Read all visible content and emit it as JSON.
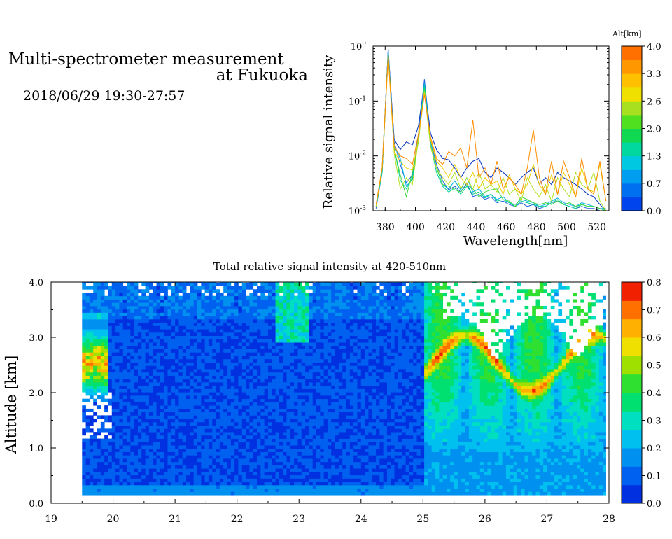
{
  "header": {
    "title_line1": "Multi-spectrometer measurement",
    "title_line2": "at Fukuoka",
    "datetime": "2018/06/29 19:30-27:57"
  },
  "chart_data": [
    {
      "type": "line",
      "xlabel": "Wavelength[nm]",
      "ylabel": "Relative signal intensity",
      "yscale": "log",
      "xlim": [
        372,
        528
      ],
      "ylim": [
        0.001,
        1
      ],
      "x_ticks": [
        "380",
        "400",
        "420",
        "440",
        "460",
        "480",
        "500",
        "520"
      ],
      "y_ticks": [
        {
          "base": "10",
          "exp": "0"
        },
        {
          "base": "10",
          "exp": "-1"
        },
        {
          "base": "10",
          "exp": "-2"
        },
        {
          "base": "10",
          "exp": "-3"
        }
      ],
      "x": [
        374,
        378,
        382,
        386,
        390,
        394,
        398,
        402,
        406,
        410,
        414,
        418,
        422,
        426,
        430,
        434,
        438,
        442,
        446,
        450,
        454,
        458,
        462,
        466,
        470,
        474,
        478,
        482,
        486,
        490,
        494,
        498,
        502,
        506,
        510,
        514,
        518,
        522,
        526
      ],
      "colorbar": {
        "label": "Alt[km]",
        "ticks": [
          "4.0",
          "3.3",
          "2.6",
          "2.0",
          "1.3",
          "0.7",
          "0.0"
        ],
        "colors": [
          "#0044ee",
          "#0070f0",
          "#009ef0",
          "#00c8e0",
          "#00d8a0",
          "#10d850",
          "#50e020",
          "#a8e020",
          "#f0e000",
          "#ffc000",
          "#ff9800",
          "#ff7000"
        ]
      },
      "series": [
        {
          "color": "#0030c0",
          "values": [
            0.0012,
            0.006,
            0.85,
            0.02,
            0.013,
            0.018,
            0.016,
            0.035,
            0.21,
            0.026,
            0.013,
            0.009,
            0.0085,
            0.006,
            0.004,
            0.006,
            0.008,
            0.009,
            0.005,
            0.004,
            0.006,
            0.005,
            0.004,
            0.003,
            0.004,
            0.005,
            0.006,
            0.003,
            0.004,
            0.003,
            0.005,
            0.004,
            0.0035,
            0.003,
            0.0025,
            0.002,
            0.0018,
            0.0013,
            0.001
          ]
        },
        {
          "color": "#2060e0",
          "values": [
            0.0011,
            0.005,
            0.9,
            0.018,
            0.007,
            0.0032,
            0.0045,
            0.025,
            0.25,
            0.02,
            0.007,
            0.0035,
            0.0024,
            0.0028,
            0.0022,
            0.0032,
            0.0018,
            0.002,
            0.0016,
            0.0018,
            0.0014,
            0.0015,
            0.0013,
            0.0012,
            0.0014,
            0.0012,
            0.0013,
            0.0011,
            0.0012,
            0.0014,
            0.0015,
            0.0013,
            0.0012,
            0.0011,
            0.0012,
            0.0011,
            0.0011,
            0.001,
            0.001
          ]
        },
        {
          "color": "#00b0e0",
          "values": [
            0.0012,
            0.005,
            0.8,
            0.015,
            0.009,
            0.0028,
            0.0037,
            0.02,
            0.21,
            0.018,
            0.006,
            0.003,
            0.0025,
            0.0035,
            0.0024,
            0.004,
            0.0022,
            0.0025,
            0.0018,
            0.002,
            0.0016,
            0.0018,
            0.0014,
            0.0013,
            0.0016,
            0.0015,
            0.0014,
            0.0012,
            0.0013,
            0.0015,
            0.0017,
            0.0014,
            0.0013,
            0.0012,
            0.0014,
            0.0013,
            0.0012,
            0.0011,
            0.0011
          ]
        },
        {
          "color": "#00d090",
          "values": [
            0.0012,
            0.005,
            0.75,
            0.014,
            0.0036,
            0.0025,
            0.004,
            0.022,
            0.19,
            0.016,
            0.005,
            0.0028,
            0.0022,
            0.0026,
            0.002,
            0.0028,
            0.002,
            0.0022,
            0.0017,
            0.002,
            0.0015,
            0.0016,
            0.0014,
            0.0012,
            0.0015,
            0.0014,
            0.0013,
            0.0012,
            0.0012,
            0.0014,
            0.0016,
            0.0013,
            0.0012,
            0.0011,
            0.0013,
            0.0012,
            0.0012,
            0.0011,
            0.001
          ]
        },
        {
          "color": "#40d840",
          "values": [
            0.0012,
            0.006,
            0.7,
            0.013,
            0.0045,
            0.0018,
            0.005,
            0.018,
            0.17,
            0.015,
            0.006,
            0.003,
            0.0028,
            0.0024,
            0.0022,
            0.003,
            0.0025,
            0.0018,
            0.0022,
            0.0024,
            0.0025,
            0.0016,
            0.0015,
            0.0012,
            0.0018,
            0.0016,
            0.0014,
            0.0013,
            0.0014,
            0.0013,
            0.0015,
            0.0013,
            0.0014,
            0.0012,
            0.0013,
            0.0012,
            0.0012,
            0.0011,
            0.001
          ]
        },
        {
          "color": "#b0e020",
          "values": [
            0.0012,
            0.006,
            0.7,
            0.011,
            0.0025,
            0.004,
            0.003,
            0.02,
            0.15,
            0.015,
            0.006,
            0.004,
            0.003,
            0.005,
            0.0025,
            0.004,
            0.0025,
            0.005,
            0.0025,
            0.003,
            0.0022,
            0.004,
            0.002,
            0.0025,
            0.0015,
            0.004,
            0.0025,
            0.0018,
            0.003,
            0.0015,
            0.004,
            0.0025,
            0.0018,
            0.005,
            0.003,
            0.0025,
            0.005,
            0.0015,
            0.001
          ]
        },
        {
          "color": "#f0d000",
          "values": [
            0.0013,
            0.006,
            0.65,
            0.012,
            0.008,
            0.006,
            0.0055,
            0.02,
            0.14,
            0.02,
            0.008,
            0.006,
            0.004,
            0.007,
            0.004,
            0.003,
            0.005,
            0.0025,
            0.004,
            0.003,
            0.0035,
            0.002,
            0.0045,
            0.0025,
            0.002,
            0.003,
            0.007,
            0.003,
            0.002,
            0.0045,
            0.002,
            0.005,
            0.003,
            0.0018,
            0.006,
            0.0025,
            0.0022,
            0.007,
            0.0015
          ]
        },
        {
          "color": "#ff8c00",
          "values": [
            0.0013,
            0.006,
            0.65,
            0.015,
            0.01,
            0.009,
            0.007,
            0.025,
            0.13,
            0.022,
            0.009,
            0.007,
            0.012,
            0.01,
            0.014,
            0.006,
            0.045,
            0.004,
            0.006,
            0.003,
            0.008,
            0.0025,
            0.004,
            0.003,
            0.002,
            0.006,
            0.03,
            0.004,
            0.002,
            0.008,
            0.002,
            0.008,
            0.004,
            0.0018,
            0.009,
            0.0025,
            0.002,
            0.008,
            0.0015
          ]
        }
      ]
    },
    {
      "type": "heatmap",
      "title": "Total relative signal intensity at 420-510nm",
      "ylabel": "Altitude [km]",
      "xlabel": "",
      "xlim": [
        19,
        28
      ],
      "ylim": [
        0,
        4
      ],
      "x_ticks": [
        "19",
        "20",
        "21",
        "22",
        "23",
        "24",
        "25",
        "26",
        "27",
        "28"
      ],
      "y_ticks": [
        "4.0",
        "3.0",
        "2.0",
        "1.0",
        "0.0"
      ],
      "data_x_range": [
        19.5,
        27.95
      ],
      "data_y_range": [
        0.15,
        4.0
      ],
      "colorbar": {
        "ticks": [
          "0.8",
          "0.7",
          "0.6",
          "0.5",
          "0.4",
          "0.3",
          "0.2",
          "0.1",
          "0.0"
        ],
        "range": [
          0,
          0.8
        ],
        "colors": [
          "#0030e0",
          "#0060f0",
          "#0090f0",
          "#00c0f0",
          "#00e0c0",
          "#00e070",
          "#30e030",
          "#a0e000",
          "#f0e000",
          "#ffb000",
          "#ff7000",
          "#f02000"
        ]
      }
    }
  ]
}
